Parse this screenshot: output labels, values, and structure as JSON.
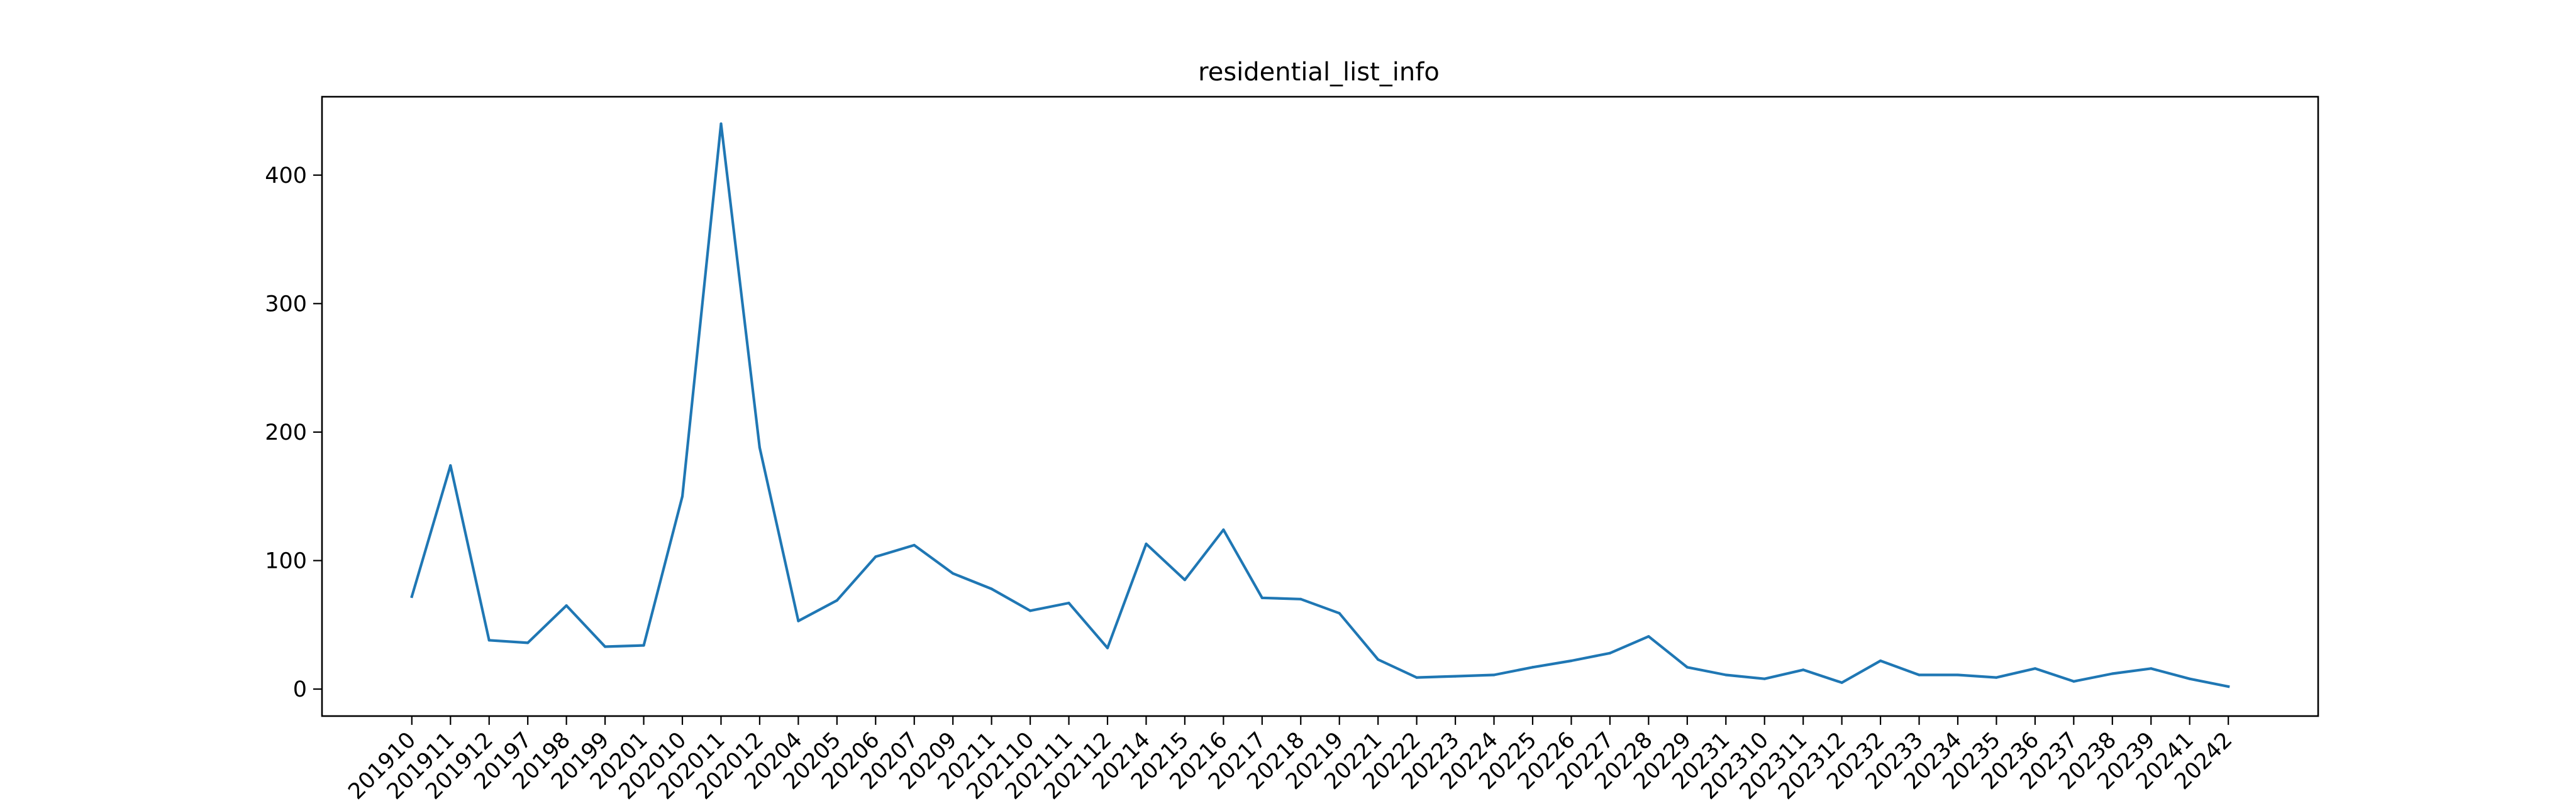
{
  "chart_data": {
    "type": "line",
    "title": "residential_list_info",
    "xlabel": "",
    "ylabel": "",
    "ylim": [
      -21,
      461
    ],
    "yticks": [
      0,
      100,
      200,
      300,
      400
    ],
    "grid": false,
    "line_color": "#1f77b4",
    "categories": [
      "201910",
      "201911",
      "201912",
      "20197",
      "20198",
      "20199",
      "20201",
      "202010",
      "202011",
      "202012",
      "20204",
      "20205",
      "20206",
      "20207",
      "20209",
      "20211",
      "202110",
      "202111",
      "202112",
      "20214",
      "20215",
      "20216",
      "20217",
      "20218",
      "20219",
      "20221",
      "20222",
      "20223",
      "20224",
      "20225",
      "20226",
      "20227",
      "20228",
      "20229",
      "20231",
      "202310",
      "202311",
      "202312",
      "20232",
      "20233",
      "20234",
      "20235",
      "20236",
      "20237",
      "20238",
      "20239",
      "20241",
      "20242"
    ],
    "series": [
      {
        "values": [
          72,
          174,
          38,
          36,
          65,
          33,
          34,
          150,
          440,
          188,
          53,
          69,
          103,
          112,
          90,
          78,
          61,
          67,
          32,
          113,
          85,
          124,
          71,
          70,
          59,
          23,
          9,
          10,
          11,
          17,
          22,
          28,
          41,
          17,
          11,
          8,
          15,
          5,
          22,
          11,
          11,
          9,
          16,
          6,
          12,
          16,
          8,
          2
        ]
      }
    ]
  }
}
